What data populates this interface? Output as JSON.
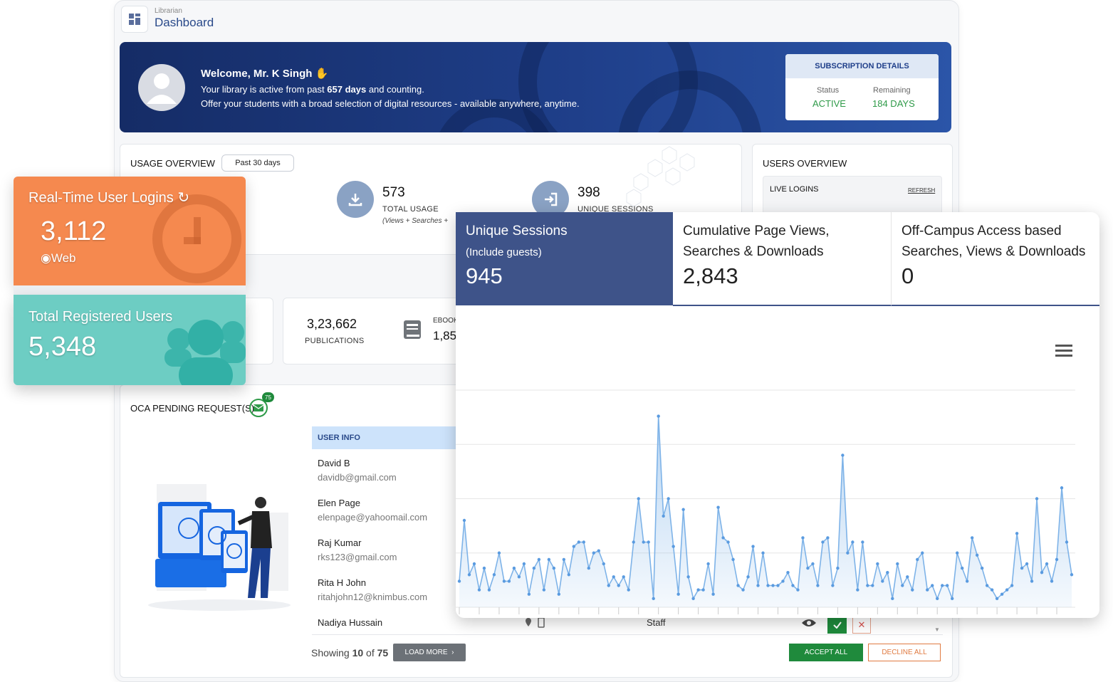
{
  "header": {
    "crumb": "Librarian",
    "title": "Dashboard"
  },
  "banner": {
    "welcome": "Welcome, Mr. K Singh",
    "line1_pre": "Your library is active from past ",
    "line1_bold": "657 days",
    "line1_post": " and counting.",
    "line2": "Offer your students with a broad selection of digital resources - available anywhere, anytime."
  },
  "subscription": {
    "heading": "SUBSCRIPTION DETAILS",
    "status_label": "Status",
    "status_value": "ACTIVE",
    "remaining_label": "Remaining",
    "remaining_value": "184 DAYS",
    "value_color": "#2e9a48"
  },
  "usage": {
    "title": "USAGE OVERVIEW",
    "filter": "Past 30 days",
    "total_value": "573",
    "total_label": "TOTAL USAGE",
    "total_note": "(Views + Searches +",
    "unique_value": "398",
    "unique_label": "UNIQUE SESSIONS"
  },
  "users_overview": {
    "title": "USERS OVERVIEW",
    "live_logins": "LIVE LOGINS",
    "refresh": "REFRESH"
  },
  "resources": {
    "publications_value": "3,23,662",
    "publications_label": "PUBLICATIONS",
    "ebooks_label": "EBOOK",
    "ebooks_value": "1,85,"
  },
  "oca": {
    "title": "OCA PENDING REQUEST(S)",
    "badge": "75",
    "table_header": "USER INFO",
    "rows": [
      {
        "name": "David B",
        "email": "davidb@gmail.com"
      },
      {
        "name": "Elen Page",
        "email": "elenpage@yahoomail.com"
      },
      {
        "name": "Raj Kumar",
        "email": "rks123@gmail.com"
      },
      {
        "name": "Rita H John",
        "email": "ritahjohn12@knimbus.com"
      },
      {
        "name": "Nadiya Hussain",
        "email": ""
      }
    ],
    "role": "Staff",
    "showing_pre": "Showing ",
    "showing_count": "10",
    "showing_mid": " of ",
    "showing_total": "75",
    "load_more": "LOAD MORE",
    "accept_all": "ACCEPT ALL",
    "decline_all": "DECLINE ALL"
  },
  "realtime": {
    "title": "Real-Time User Logins",
    "value": "3,112",
    "source": "Web"
  },
  "registered": {
    "title": "Total Registered Users",
    "value": "5,348"
  },
  "stats": [
    {
      "title": "Unique Sessions",
      "subtitle": "(Include guests)",
      "value": "945"
    },
    {
      "title": "Cumulative Page Views,",
      "subtitle": "Searches & Downloads",
      "value": "2,843"
    },
    {
      "title": "Off-Campus Access based",
      "subtitle": "Searches, Views & Downloads",
      "value": "0"
    }
  ],
  "colors": {
    "accent": "#3e5389",
    "orange": "#f5894f",
    "teal": "#6dcdc3",
    "series": "#7eb3e8"
  },
  "chart_data": {
    "type": "area",
    "title": "",
    "xlabel": "",
    "ylabel": "",
    "grid": true,
    "ylim": [
      0,
      100
    ],
    "series": [
      {
        "values": [
          12,
          40,
          15,
          20,
          8,
          18,
          8,
          15,
          25,
          12,
          12,
          18,
          14,
          20,
          6,
          18,
          22,
          8,
          22,
          18,
          6,
          22,
          15,
          28,
          30,
          30,
          18,
          25,
          26,
          20,
          10,
          14,
          10,
          14,
          8,
          30,
          50,
          30,
          30,
          4,
          88,
          42,
          50,
          28,
          6,
          45,
          14,
          4,
          8,
          8,
          20,
          6,
          46,
          32,
          30,
          22,
          10,
          8,
          14,
          28,
          10,
          25,
          10,
          10,
          10,
          12,
          16,
          10,
          8,
          32,
          18,
          20,
          10,
          30,
          32,
          10,
          18,
          70,
          25,
          30,
          8,
          30,
          10,
          10,
          20,
          12,
          16,
          4,
          20,
          10,
          14,
          8,
          22,
          25,
          8,
          10,
          4,
          10,
          10,
          4,
          25,
          18,
          12,
          32,
          24,
          18,
          10,
          8,
          4,
          6,
          8,
          10,
          34,
          18,
          20,
          12,
          50,
          16,
          20,
          12,
          22,
          55,
          30,
          15
        ]
      }
    ]
  }
}
